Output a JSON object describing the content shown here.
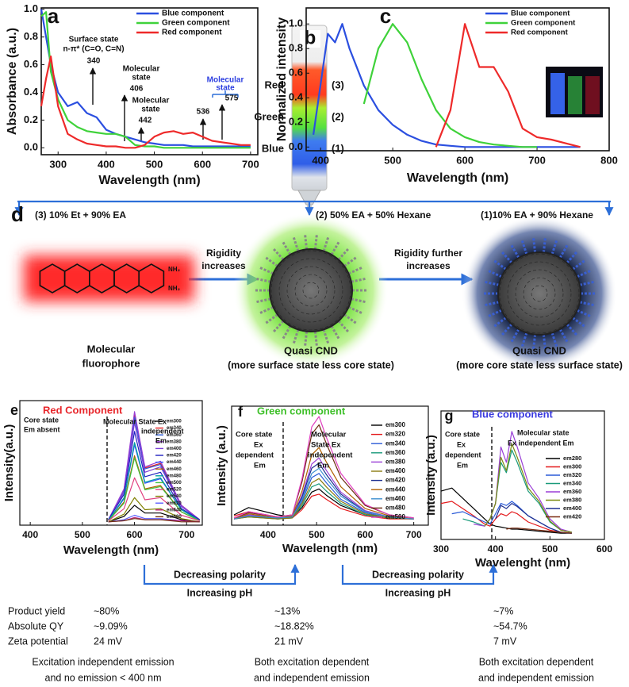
{
  "chart_data": [
    {
      "type": "line",
      "panel_label": "a",
      "x_label": "Wavelength (nm)",
      "y_label": "Absorbance (a.u.)",
      "x": [
        265,
        275,
        285,
        300,
        320,
        340,
        360,
        380,
        400,
        420,
        440,
        460,
        480,
        500,
        520,
        540,
        560,
        580,
        600,
        620,
        640,
        660,
        680,
        700
      ],
      "xlim": [
        265,
        715
      ],
      "ylim": [
        -0.05,
        1.01
      ],
      "xticks": [
        300,
        400,
        500,
        600,
        700
      ],
      "yticks": [
        {
          "value": 0,
          "label": "0.0"
        },
        {
          "value": 0.2,
          "label": "0.2"
        },
        {
          "value": 0.4,
          "label": "0.4"
        },
        {
          "value": 0.6,
          "label": "0.6"
        },
        {
          "value": 0.8,
          "label": "0.8"
        },
        {
          "value": 1,
          "label": "1.0"
        }
      ],
      "legend": "upper right",
      "series": [
        {
          "name": "Blue component",
          "color": "#2b4fe0",
          "values": [
            1.0,
            0.8,
            0.6,
            0.4,
            0.3,
            0.33,
            0.25,
            0.22,
            0.13,
            0.1,
            0.08,
            0.06,
            0.04,
            0.03,
            0.02,
            0.02,
            0.02,
            0.01,
            0.01,
            0.01,
            0.01,
            0.01,
            0.01,
            0.01
          ]
        },
        {
          "name": "Green component",
          "color": "#3fd23a",
          "values": [
            0.95,
            0.98,
            0.55,
            0.35,
            0.2,
            0.15,
            0.12,
            0.11,
            0.1,
            0.1,
            0.08,
            0.02,
            0.01,
            0.01,
            0,
            0,
            0,
            0,
            0,
            0,
            0,
            0,
            0,
            0
          ]
        },
        {
          "name": "Red component",
          "color": "#ee2a2a",
          "values": [
            0.3,
            0.5,
            0.66,
            0.3,
            0.1,
            0.06,
            0.03,
            0.02,
            0.01,
            0.01,
            0,
            0,
            0.02,
            0.08,
            0.11,
            0.12,
            0.1,
            0.11,
            0.08,
            0.05,
            0.04,
            0.03,
            0.02,
            0.02
          ]
        }
      ],
      "annotations": [
        "Surface state",
        "n-π* (C=O, C=N)",
        "340",
        "Molecular",
        "state",
        "406",
        "Molecular",
        "state",
        "442",
        "Molecular",
        "state",
        "536",
        "575"
      ]
    },
    {
      "type": "line",
      "panel_label": "c",
      "x_label": "Wavelength (nm)",
      "y_label": "Normalized intensity",
      "x": [
        390,
        410,
        420,
        430,
        440,
        460,
        480,
        500,
        520,
        540,
        560,
        580,
        600,
        620,
        640,
        660,
        680,
        700,
        720,
        740,
        760
      ],
      "xlim": [
        380,
        800
      ],
      "ylim": [
        -0.03,
        1.13
      ],
      "xticks": [
        400,
        500,
        600,
        700,
        800
      ],
      "yticks": [
        {
          "value": 0,
          "label": "0.0"
        },
        {
          "value": 0.2,
          "label": "0.2"
        },
        {
          "value": 0.4,
          "label": "0.4"
        },
        {
          "value": 0.6,
          "label": "0.6"
        },
        {
          "value": 0.8,
          "label": "0.8"
        },
        {
          "value": 1,
          "label": "1.0"
        }
      ],
      "legend": "upper right",
      "series": [
        {
          "name": "Blue component",
          "color": "#2b4fe0",
          "values": [
            0.1,
            0.92,
            0.85,
            1.0,
            0.8,
            0.5,
            0.3,
            0.18,
            0.1,
            0.05,
            0.02,
            0.01,
            0,
            0,
            0,
            0,
            0,
            0,
            0,
            0,
            0
          ]
        },
        {
          "name": "Green component",
          "color": "#3fd23a",
          "values": [
            null,
            null,
            null,
            null,
            null,
            0.35,
            0.8,
            1.0,
            0.85,
            0.55,
            0.3,
            0.15,
            0.08,
            0.04,
            0.02,
            0.01,
            0,
            0,
            null,
            null,
            null
          ]
        },
        {
          "name": "Red component",
          "color": "#ee2a2a",
          "values": [
            null,
            null,
            null,
            null,
            null,
            null,
            null,
            null,
            null,
            null,
            0,
            0.3,
            1.0,
            0.65,
            0.65,
            0.45,
            0.15,
            0.08,
            0.06,
            0.03,
            0
          ]
        }
      ]
    },
    {
      "type": "line",
      "panel_label": "e",
      "title": "Red Component",
      "x_label": "Wavelength (nm)",
      "y_label": "Intensity(a.u.)",
      "x": [
        550,
        580,
        600,
        620,
        650,
        690,
        725
      ],
      "xlim": [
        380,
        730
      ],
      "ylim": [
        -0.03,
        1.1
      ],
      "xticks": [
        400,
        500,
        600,
        700
      ],
      "legend": "upper right",
      "series": [
        {
          "name": "em300",
          "color": "#000000",
          "values": [
            0,
            0.05,
            0.15,
            0.08,
            0.08,
            0.02,
            0
          ]
        },
        {
          "name": "em340",
          "color": "#e41a1c",
          "values": [
            0.02,
            0.29,
            0.97,
            0.49,
            0.53,
            0.15,
            0.02
          ]
        },
        {
          "name": "em360",
          "color": "#2b5bd7",
          "values": [
            0.02,
            0.29,
            0.95,
            0.48,
            0.52,
            0.14,
            0.02
          ]
        },
        {
          "name": "em380",
          "color": "#9a3fd6",
          "values": [
            0.02,
            0.3,
            1.0,
            0.5,
            0.55,
            0.15,
            0.02
          ]
        },
        {
          "name": "em400",
          "color": "#7b3fd6",
          "values": [
            0.02,
            0.27,
            0.9,
            0.45,
            0.5,
            0.14,
            0.02
          ]
        },
        {
          "name": "em420",
          "color": "#2020c0",
          "values": [
            0.02,
            0.25,
            0.82,
            0.41,
            0.45,
            0.12,
            0.02
          ]
        },
        {
          "name": "em440",
          "color": "#3050ff",
          "values": [
            0.01,
            0.21,
            0.7,
            0.35,
            0.39,
            0.11,
            0.01
          ]
        },
        {
          "name": "em460",
          "color": "#b06000",
          "values": [
            0.01,
            0.18,
            0.6,
            0.3,
            0.33,
            0.09,
            0.01
          ]
        },
        {
          "name": "em480",
          "color": "#00a0a0",
          "values": [
            0.01,
            0.22,
            0.72,
            0.36,
            0.4,
            0.11,
            0.01
          ]
        },
        {
          "name": "em500",
          "color": "#40c040",
          "values": [
            0.01,
            0.17,
            0.58,
            0.29,
            0.32,
            0.09,
            0.01
          ]
        },
        {
          "name": "em520",
          "color": "#e0407f",
          "values": [
            0.01,
            0.12,
            0.4,
            0.2,
            0.22,
            0.06,
            0.01
          ]
        },
        {
          "name": "em540",
          "color": "#808000",
          "values": [
            0,
            0.07,
            0.22,
            0.11,
            0.12,
            0.03,
            0
          ]
        },
        {
          "name": "em620",
          "color": "#6060ff",
          "values": [
            0,
            0.02,
            0.06,
            0.03,
            0.03,
            0.01,
            0
          ]
        },
        {
          "name": "em640",
          "color": "#c02080",
          "values": [
            0,
            0.01,
            0.04,
            0.02,
            0.02,
            0.01,
            0
          ]
        },
        {
          "name": "em680",
          "color": "#703010",
          "values": [
            0,
            0.01,
            0.03,
            0.02,
            0.02,
            0,
            0
          ]
        }
      ],
      "annotations": [
        "Core state",
        "Em absent",
        "Molecular State Ex",
        "independent",
        "Em"
      ]
    },
    {
      "type": "line",
      "panel_label": "f",
      "title": "Green component",
      "x_label": "Wavelength (nm)",
      "y_label": "Intensity (a.u.)",
      "x": [
        330,
        360,
        420,
        450,
        470,
        490,
        505,
        520,
        550,
        600,
        650,
        700
      ],
      "xlim": [
        325,
        730
      ],
      "ylim": [
        -0.05,
        1.1
      ],
      "xticks": [
        400,
        500,
        600,
        700
      ],
      "legend": "upper right",
      "series": [
        {
          "name": "em300",
          "color": "#000000",
          "values": [
            0.05,
            0.12,
            0.05,
            0.03,
            0.12,
            0.27,
            0.3,
            0.24,
            0.14,
            0.05,
            0.02,
            0.01
          ]
        },
        {
          "name": "em320",
          "color": "#e41a1c",
          "values": [
            0.04,
            0.08,
            0.03,
            0.02,
            0.1,
            0.23,
            0.25,
            0.2,
            0.11,
            0.04,
            0.01,
            0.01
          ]
        },
        {
          "name": "em340",
          "color": "#2b5bd7",
          "values": [
            0.01,
            0.04,
            0.01,
            0.02,
            0.18,
            0.41,
            0.45,
            0.36,
            0.2,
            0.07,
            0.02,
            0.01
          ]
        },
        {
          "name": "em360",
          "color": "#1a9a7a",
          "values": [
            0.01,
            0.03,
            0.01,
            0.02,
            0.14,
            0.32,
            0.35,
            0.28,
            0.16,
            0.05,
            0.02,
            0.01
          ]
        },
        {
          "name": "em380",
          "color": "#9a3fd6",
          "values": [
            0.01,
            0.05,
            0.02,
            0.03,
            0.24,
            0.54,
            0.6,
            0.48,
            0.27,
            0.09,
            0.03,
            0.01
          ]
        },
        {
          "name": "em400",
          "color": "#8a7a10",
          "values": [
            0.01,
            0.03,
            0.01,
            0.02,
            0.16,
            0.36,
            0.4,
            0.32,
            0.18,
            0.06,
            0.02,
            0.01
          ]
        },
        {
          "name": "em420",
          "color": "#1d2f90",
          "values": [
            0.01,
            0.04,
            0.02,
            0.03,
            0.22,
            0.5,
            0.55,
            0.44,
            0.25,
            0.08,
            0.03,
            0.01
          ]
        },
        {
          "name": "em440",
          "color": "#b06000",
          "values": [
            0.01,
            0.06,
            0.02,
            0.04,
            0.28,
            0.63,
            0.7,
            0.56,
            0.32,
            0.11,
            0.04,
            0.01
          ]
        },
        {
          "name": "em460",
          "color": "#3c8fd0",
          "values": [
            0.01,
            0.04,
            0.02,
            0.03,
            0.2,
            0.45,
            0.5,
            0.4,
            0.23,
            0.08,
            0.03,
            0.01
          ]
        },
        {
          "name": "em480",
          "color": "#6b2a10",
          "values": [
            0.02,
            0.07,
            0.03,
            0.05,
            0.37,
            0.83,
            0.92,
            0.74,
            0.41,
            0.14,
            0.05,
            0.02
          ]
        },
        {
          "name": "em500",
          "color": "#e040c0",
          "values": [
            0.02,
            0.08,
            0.03,
            0.05,
            0.4,
            0.9,
            1.0,
            0.8,
            0.45,
            0.15,
            0.05,
            0.02
          ]
        }
      ],
      "annotations": [
        "Core state",
        "Ex",
        "dependent",
        "Em",
        "Molecular",
        "State Ex",
        "independent",
        "Em"
      ]
    },
    {
      "type": "line",
      "panel_label": "g",
      "title": "Blue component",
      "x_label": "Wavelenght (nm)",
      "y_label": "Intensity (a.u.)",
      "x": [
        300,
        320,
        340,
        360,
        380,
        390,
        400,
        410,
        420,
        430,
        440,
        460,
        480,
        500,
        520,
        540
      ],
      "xlim": [
        300,
        600
      ],
      "ylim": [
        -0.05,
        1.2
      ],
      "xticks": [
        300,
        400,
        500,
        600
      ],
      "legend": "center right",
      "series": [
        {
          "name": "em280",
          "color": "#000000",
          "values": [
            0.42,
            0.45,
            0.35,
            0.25,
            0.15,
            0.1,
            0.08,
            0.07,
            0.06,
            0.05,
            0.05,
            0.04,
            0.03,
            0.02,
            0.01,
            0.01
          ]
        },
        {
          "name": "em300",
          "color": "#e41a1c",
          "values": [
            0.3,
            0.32,
            0.25,
            0.18,
            0.1,
            0.08,
            0.15,
            0.2,
            0.18,
            0.22,
            0.2,
            0.12,
            0.08,
            0.04,
            0.02,
            0.01
          ]
        },
        {
          "name": "em320",
          "color": "#2b5bd7",
          "values": [
            null,
            0.2,
            0.22,
            0.17,
            0.12,
            0.1,
            0.2,
            0.3,
            0.28,
            0.32,
            0.28,
            0.18,
            0.12,
            0.06,
            0.02,
            0.01
          ]
        },
        {
          "name": "em340",
          "color": "#1a9a7a",
          "values": [
            null,
            null,
            0.15,
            0.12,
            0.08,
            0.15,
            0.3,
            0.7,
            0.6,
            0.82,
            0.7,
            0.42,
            0.3,
            0.12,
            0.04,
            0.02
          ]
        },
        {
          "name": "em360",
          "color": "#9a3fd6",
          "values": [
            null,
            null,
            null,
            0.1,
            0.08,
            0.15,
            0.3,
            0.85,
            0.7,
            1.0,
            0.85,
            0.5,
            0.35,
            0.15,
            0.05,
            0.02
          ]
        },
        {
          "name": "em380",
          "color": "#7a8a10",
          "values": [
            null,
            null,
            null,
            null,
            0.08,
            0.15,
            0.3,
            0.75,
            0.62,
            0.88,
            0.75,
            0.45,
            0.32,
            0.13,
            0.04,
            0.02
          ]
        },
        {
          "name": "em400",
          "color": "#1d2f90",
          "values": [
            null,
            null,
            null,
            null,
            null,
            null,
            0.15,
            0.28,
            0.25,
            0.3,
            0.27,
            0.18,
            0.12,
            0.06,
            0.02,
            0.01
          ]
        },
        {
          "name": "em420",
          "color": "#7a2a10",
          "values": [
            null,
            null,
            null,
            null,
            null,
            null,
            null,
            null,
            0.05,
            0.06,
            0.06,
            0.05,
            0.04,
            0.03,
            0.02,
            0.01
          ]
        }
      ],
      "annotations": [
        "Core state",
        "Ex",
        "dependent",
        "Em",
        "Molecular state",
        "Ex independent Em"
      ]
    }
  ],
  "panel_b": {
    "label": "b",
    "layers": [
      {
        "name": "Red",
        "number": "(3)"
      },
      {
        "name": "Green",
        "number": "(2)"
      },
      {
        "name": "Blue",
        "number": "(1)"
      }
    ]
  },
  "panel_d": {
    "label": "d",
    "fractions": [
      "(3) 10% Et + 90% EA",
      "(2) 50% EA + 50% Hexane",
      "(1)10% EA + 90% Hexane"
    ],
    "transitions": [
      [
        "Rigidity",
        "increases"
      ],
      [
        "Rigidity further",
        "increases"
      ]
    ],
    "amine": "NH₂",
    "species": [
      {
        "name": [
          "Molecular",
          "fluorophore"
        ]
      },
      {
        "name": [
          "Quasi CND"
        ],
        "note": "(more surface state less core state)"
      },
      {
        "name": [
          "Quasi CND"
        ],
        "note": "(more core state less surface state)"
      }
    ]
  },
  "trends": [
    {
      "polarity": "Decreasing polarity",
      "ph": "Increasing pH"
    },
    {
      "polarity": "Decreasing polarity",
      "ph": "Increasing pH"
    }
  ],
  "table": {
    "rows": [
      [
        "Product yield",
        "~80%",
        "~13%",
        "~7%"
      ],
      [
        "Absolute QY",
        "~9.09%",
        "~18.82%",
        "~54.7%"
      ],
      [
        "Zeta potential",
        "24 mV",
        "21 mV",
        "7 mV"
      ]
    ]
  },
  "summary": [
    [
      "Excitation independent emission",
      "and no emission < 400 nm"
    ],
    [
      "Both excitation dependent",
      "and independent emission"
    ],
    [
      "Both excitation dependent",
      "and independent emission"
    ]
  ]
}
